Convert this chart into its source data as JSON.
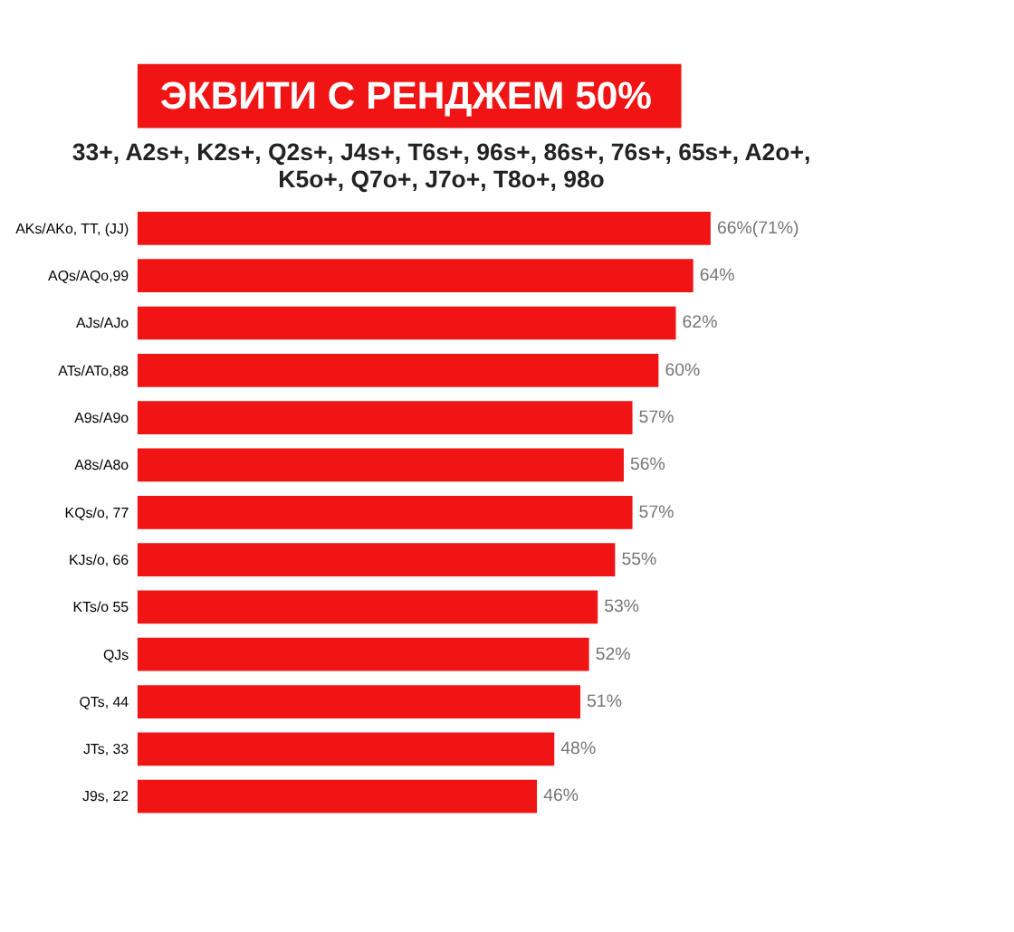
{
  "chart_data": {
    "type": "bar",
    "orientation": "horizontal",
    "title": "ЭКВИТИ С РЕНДЖЕМ 50%",
    "subtitle": "33+, A2s+, K2s+, Q2s+, J4s+, T6s+, 96s+, 86s+, 76s+, 65s+, A2o+,\nK5o+, Q7o+, J7o+, T8o+, 98o",
    "categories": [
      "AKs/AKo, TT, (JJ)",
      "AQs/AQo,99",
      "AJs/AJo",
      "ATs/ATo,88",
      "A9s/A9o",
      "A8s/A8o",
      "KQs/o, 77",
      "KJs/o, 66",
      "KTs/o 55",
      "QJs",
      "QTs, 44",
      "JTs, 33",
      "J9s, 22"
    ],
    "values": [
      66,
      64,
      62,
      60,
      57,
      56,
      57,
      55,
      53,
      52,
      51,
      48,
      46
    ],
    "value_labels": [
      "66%(71%)",
      "64%",
      "62%",
      "60%",
      "57%",
      "56%",
      "57%",
      "55%",
      "53%",
      "52%",
      "51%",
      "48%",
      "46%"
    ],
    "color": "#f01414"
  }
}
